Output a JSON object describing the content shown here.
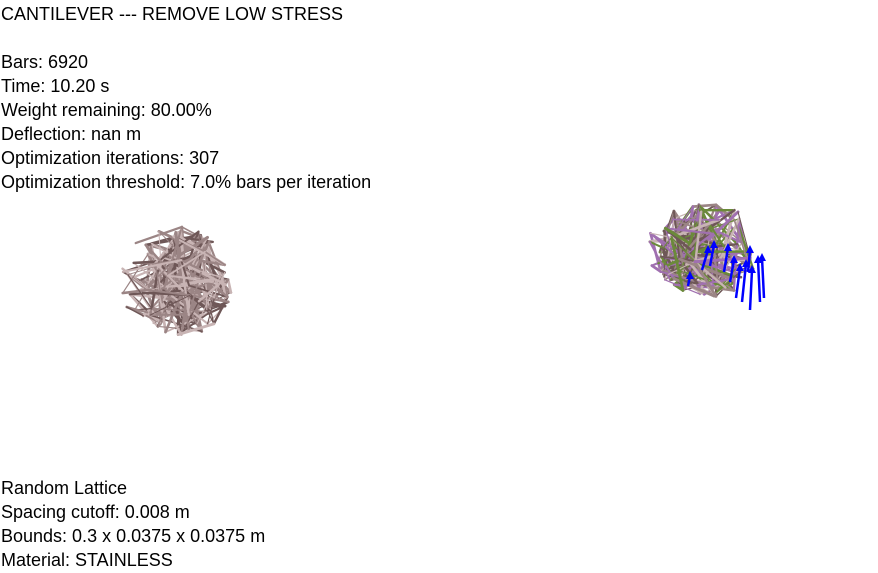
{
  "title": "CANTILEVER --- REMOVE LOW STRESS",
  "stats": {
    "bars": "Bars: 6920",
    "time": "Time: 10.20 s",
    "weight_remaining": "Weight remaining: 80.00%",
    "deflection": "Deflection: nan m",
    "optimization_iterations": "Optimization iterations: 307",
    "optimization_threshold": "Optimization threshold: 7.0% bars per iteration"
  },
  "lattice": {
    "type": "Random Lattice",
    "spacing_cutoff": "Spacing cutoff: 0.008 m",
    "bounds": "Bounds: 0.3 x 0.0375 x 0.0375 m",
    "material": "Material: STAINLESS"
  },
  "colors": {
    "bar_base": "#9b8585",
    "bar_dark": "#6e5757",
    "bar_light": "#c8b4b4",
    "bar_green": "#6b8a3a",
    "bar_purple": "#a070b0",
    "force_arrows": "#0000ff"
  },
  "viewports": {
    "original_icon": "lattice-mesh",
    "optimized_icon": "optimized-lattice-mesh"
  }
}
